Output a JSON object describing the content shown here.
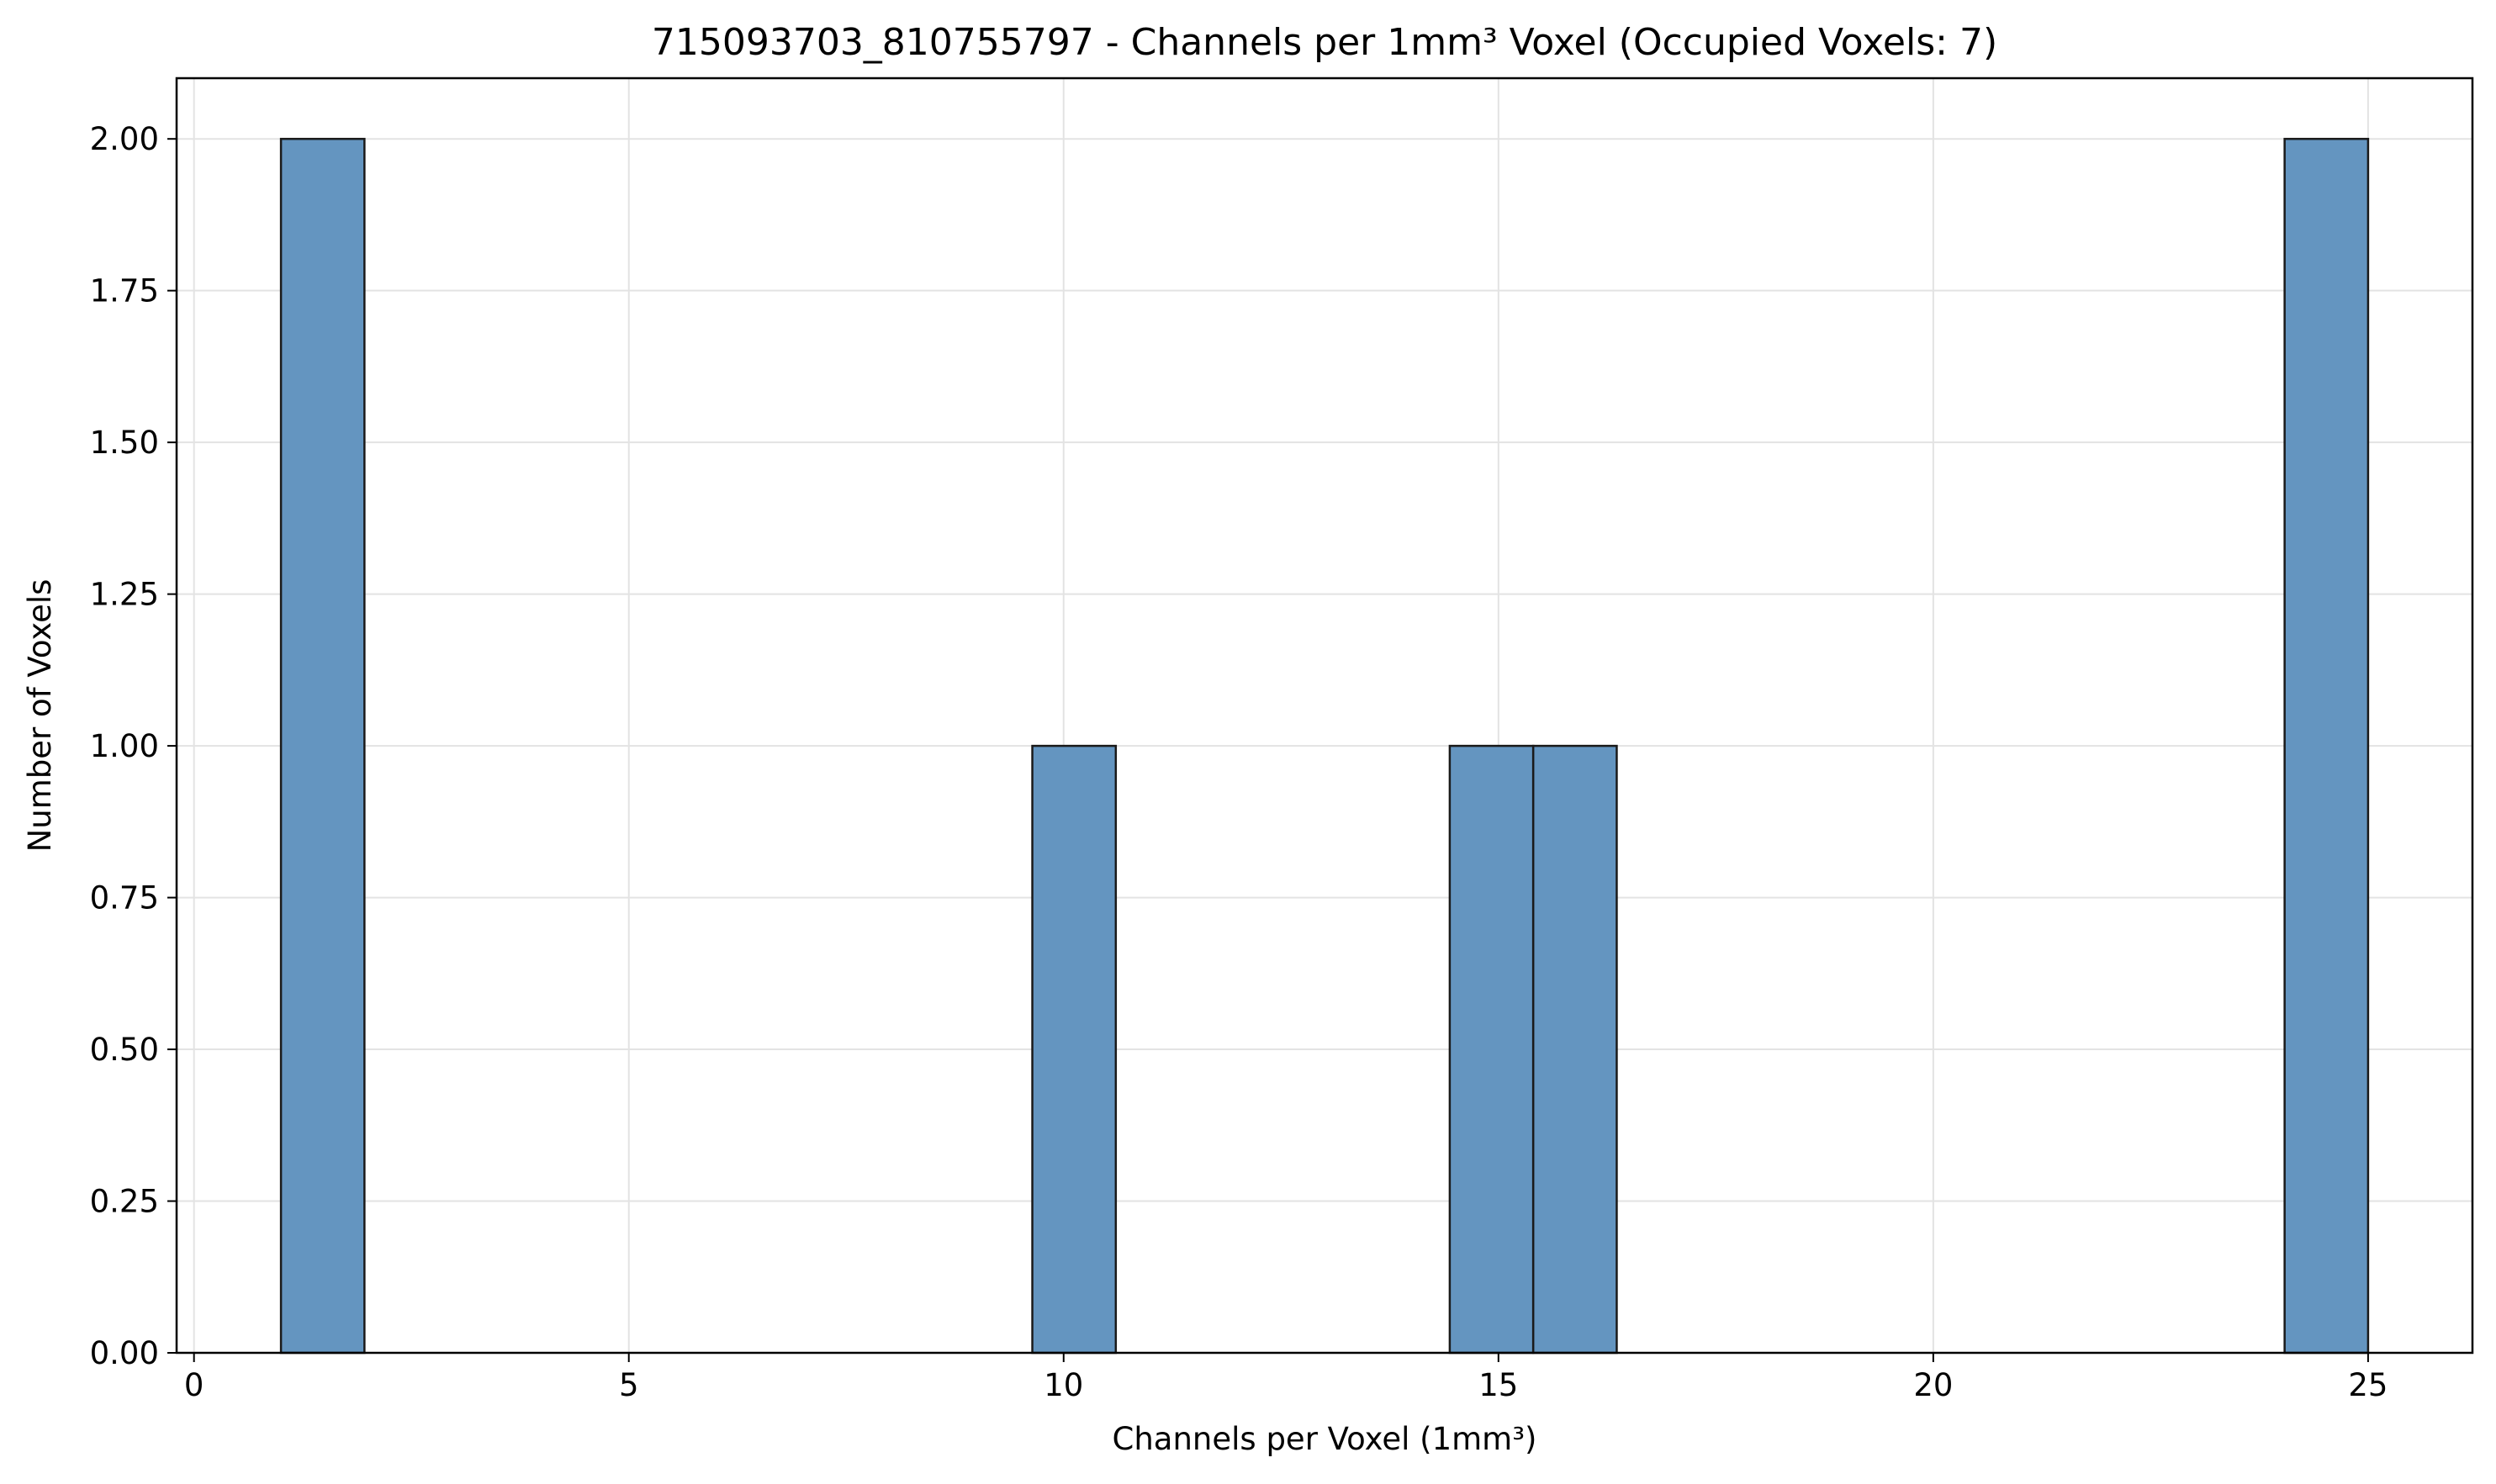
{
  "chart_data": {
    "type": "bar",
    "title": "715093703_810755797 - Channels per 1mm³ Voxel (Occupied Voxels: 7)",
    "xlabel": "Channels per Voxel (1mm³)",
    "ylabel": "Number of Voxels",
    "xlim": [
      -0.2,
      26.2
    ],
    "ylim": [
      0,
      2.1
    ],
    "xticks": [
      0,
      5,
      10,
      15,
      20,
      25
    ],
    "xtick_labels": [
      "0",
      "5",
      "10",
      "15",
      "20",
      "25"
    ],
    "yticks": [
      0,
      0.25,
      0.5,
      0.75,
      1.0,
      1.25,
      1.5,
      1.75,
      2.0
    ],
    "ytick_labels": [
      "0.00",
      "0.25",
      "0.50",
      "0.75",
      "1.00",
      "1.25",
      "1.50",
      "1.75",
      "2.00"
    ],
    "grid": true,
    "bar_color": "#6495c0",
    "edge_color": "#1a1a1a",
    "bin_width": 0.96,
    "bins": [
      {
        "start": 1.0,
        "end": 1.96,
        "count": 2
      },
      {
        "start": 9.64,
        "end": 10.6,
        "count": 1
      },
      {
        "start": 14.44,
        "end": 15.4,
        "count": 1
      },
      {
        "start": 15.4,
        "end": 16.36,
        "count": 1
      },
      {
        "start": 24.04,
        "end": 25.0,
        "count": 2
      }
    ]
  }
}
